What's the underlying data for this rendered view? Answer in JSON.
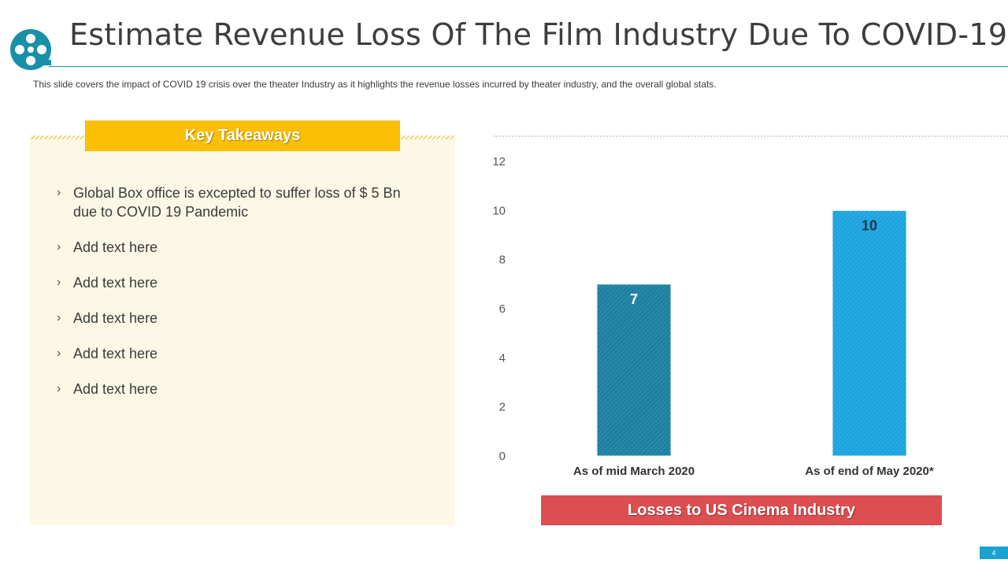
{
  "slide": {
    "title": "Estimate Revenue Loss Of The Film Industry Due To COVID-19",
    "subtitle": "This slide covers the impact of COVID 19 crisis over the theater Industry as it highlights the revenue losses incurred by theater industry, and the overall global stats.",
    "page_number": "4",
    "colors": {
      "accent": "#1a8fa8",
      "takeaways_header": "#fbbf05",
      "panel_bg": "#fdf8e6",
      "losses_bar": "#dc4e50"
    }
  },
  "takeaways": {
    "header": "Key Takeaways",
    "bullet_glyph": "›",
    "items": [
      "Global Box office is excepted to suffer loss of $ 5 Bn due to COVID 19 Pandemic",
      "Add text here",
      "Add text here",
      "Add text here",
      "Add text here",
      "Add text here"
    ]
  },
  "chart_data": {
    "type": "bar",
    "title": "Losses to US Cinema Industry",
    "categories": [
      "As of mid March 2020",
      "As of end of May 2020*"
    ],
    "values": [
      7,
      10
    ],
    "data_labels": [
      "7",
      "10"
    ],
    "colors": [
      "#1b7fa0",
      "#1aa3df"
    ],
    "ylim": [
      0,
      12
    ],
    "yticks": [
      0,
      2,
      4,
      6,
      8,
      10,
      12
    ],
    "xlabel": "",
    "ylabel": "",
    "grid": false
  }
}
